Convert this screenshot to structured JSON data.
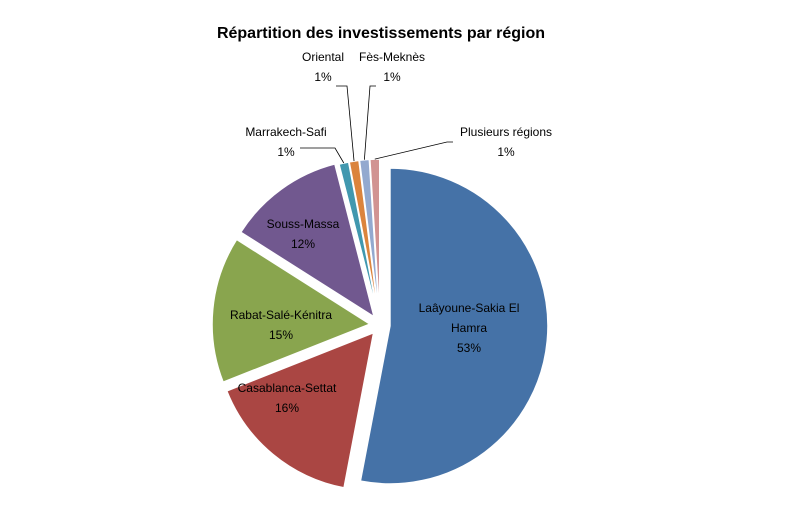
{
  "chart_data": {
    "type": "pie",
    "title": "Répartition des investissements par région",
    "slices": [
      {
        "label": "Laâyoune-Sakia El Hamra",
        "value": 53,
        "value_label": "53%",
        "color": "#4572A7"
      },
      {
        "label": "Casablanca-Settat",
        "value": 16,
        "value_label": "16%",
        "color": "#AA4643"
      },
      {
        "label": "Rabat-Salé-Kénitra",
        "value": 15,
        "value_label": "15%",
        "color": "#89A54E"
      },
      {
        "label": "Souss-Massa",
        "value": 12,
        "value_label": "12%",
        "color": "#71588F"
      },
      {
        "label": "Marrakech-Safi",
        "value": 1,
        "value_label": "1%",
        "color": "#4198AF"
      },
      {
        "label": "Oriental",
        "value": 1,
        "value_label": "1%",
        "color": "#DB843D"
      },
      {
        "label": "Fès-Meknès",
        "value": 1,
        "value_label": "1%",
        "color": "#93A9CF"
      },
      {
        "label": "Plusieurs régions",
        "value": 1,
        "value_label": "1%",
        "color": "#D19392"
      }
    ]
  }
}
